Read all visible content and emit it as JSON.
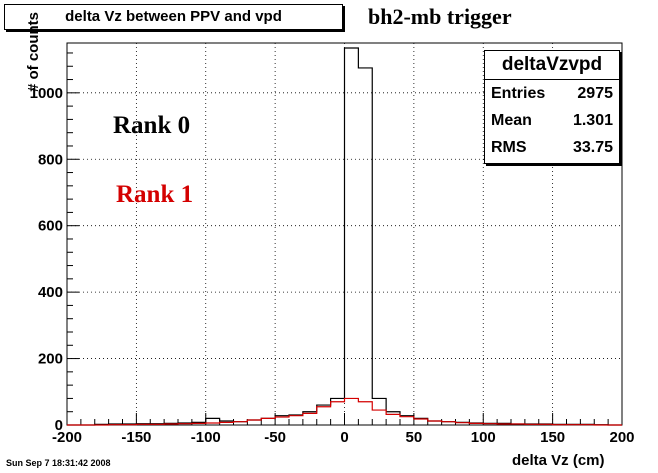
{
  "header": {
    "title": "delta Vz between PPV and vpd",
    "subtitle": "bh2-mb trigger"
  },
  "stats": {
    "name": "deltaVzvpd",
    "rows": [
      {
        "label": "Entries",
        "value": "2975"
      },
      {
        "label": "Mean",
        "value": "1.301"
      },
      {
        "label": "RMS",
        "value": "33.75"
      }
    ]
  },
  "legend": {
    "rank0": "Rank 0",
    "rank1": "Rank 1"
  },
  "footer": {
    "date": "Sun Sep  7 18:31:42 2008"
  },
  "colors": {
    "rank0": "#000000",
    "rank1": "#d40000"
  },
  "chart_data": {
    "type": "histogram",
    "xlabel": "delta Vz (cm)",
    "ylabel": "# of counts",
    "xlim": [
      -200,
      200
    ],
    "ylim": [
      0,
      1150
    ],
    "x_ticks": [
      -200,
      -150,
      -100,
      -50,
      0,
      50,
      100,
      150,
      200
    ],
    "y_ticks": [
      0,
      200,
      400,
      600,
      800,
      1000
    ],
    "bin_edges": [
      -200,
      -190,
      -180,
      -170,
      -160,
      -150,
      -140,
      -130,
      -120,
      -110,
      -100,
      -90,
      -80,
      -70,
      -60,
      -50,
      -40,
      -30,
      -20,
      -10,
      0,
      10,
      20,
      30,
      40,
      50,
      60,
      70,
      80,
      90,
      100,
      110,
      120,
      130,
      140,
      150,
      160,
      170,
      180,
      190,
      200
    ],
    "series": [
      {
        "name": "Rank 0",
        "color": "#000000",
        "values": [
          0,
          0,
          2,
          3,
          3,
          4,
          4,
          5,
          6,
          8,
          20,
          12,
          10,
          15,
          20,
          28,
          30,
          40,
          60,
          80,
          1135,
          1075,
          80,
          40,
          28,
          20,
          12,
          10,
          8,
          6,
          5,
          5,
          3,
          3,
          3,
          2,
          2,
          2,
          1,
          0
        ]
      },
      {
        "name": "Rank 1",
        "color": "#d40000",
        "values": [
          0,
          0,
          0,
          1,
          1,
          2,
          2,
          3,
          4,
          5,
          6,
          8,
          10,
          15,
          20,
          24,
          28,
          35,
          55,
          70,
          80,
          70,
          45,
          32,
          25,
          18,
          12,
          10,
          7,
          5,
          4,
          3,
          3,
          2,
          2,
          1,
          1,
          1,
          0,
          0
        ]
      }
    ]
  }
}
